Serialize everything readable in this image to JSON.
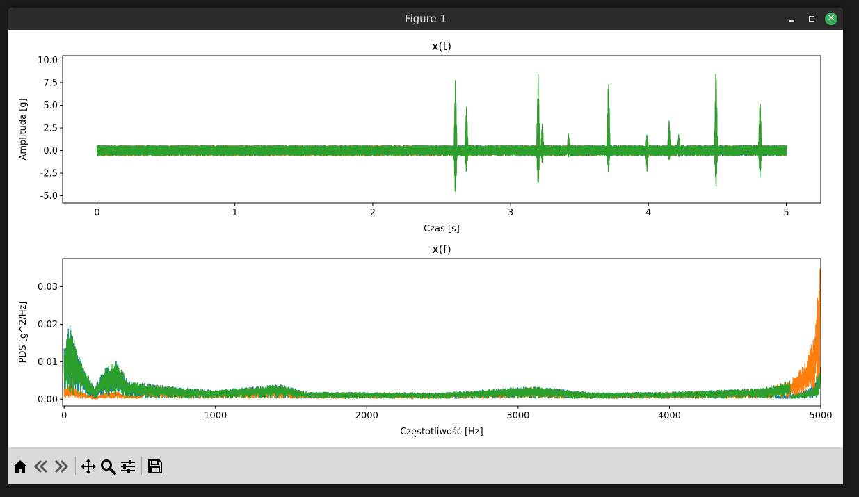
{
  "window": {
    "title": "Figure 1"
  },
  "toolbar": {
    "items": [
      {
        "name": "home-icon"
      },
      {
        "name": "back-icon"
      },
      {
        "name": "forward-icon"
      },
      {
        "name": "pan-icon"
      },
      {
        "name": "zoom-icon"
      },
      {
        "name": "configure-subplots-icon"
      },
      {
        "name": "save-icon"
      }
    ]
  },
  "colors": {
    "series1": "#1f77b4",
    "series2": "#ff7f0e",
    "series3": "#2ca02c"
  },
  "chart_data": [
    {
      "type": "line",
      "title": "x(t)",
      "xlabel": "Czas [s]",
      "ylabel": "Amplituda [g]",
      "xlim": [
        -0.25,
        5.25
      ],
      "ylim": [
        -5.8,
        10.5
      ],
      "xticks": [
        "0",
        "1",
        "2",
        "3",
        "4",
        "5"
      ],
      "yticks": [
        "10.0",
        "7.5",
        "5.0",
        "2.5",
        "0.0",
        "-2.5",
        "-5.0"
      ],
      "grid": false,
      "series_count": 3,
      "baseline_band": [
        -0.6,
        0.6
      ],
      "spikes": [
        {
          "t": 2.6,
          "max": 7.8,
          "min": -5.4
        },
        {
          "t": 2.68,
          "max": 5.2,
          "min": -2.6
        },
        {
          "t": 3.2,
          "max": 8.4,
          "min": -4.2
        },
        {
          "t": 3.23,
          "max": 3.2,
          "min": -1.5
        },
        {
          "t": 3.42,
          "max": 2.0,
          "min": -0.8
        },
        {
          "t": 3.71,
          "max": 8.4,
          "min": -2.5
        },
        {
          "t": 3.99,
          "max": 2.0,
          "min": -2.4
        },
        {
          "t": 4.15,
          "max": 3.3,
          "min": -1.2
        },
        {
          "t": 4.22,
          "max": 1.9,
          "min": -0.8
        },
        {
          "t": 4.49,
          "max": 9.7,
          "min": -4.1
        },
        {
          "t": 4.81,
          "max": 5.9,
          "min": -3.1
        }
      ]
    },
    {
      "type": "line",
      "title": "x(f)",
      "xlabel": "Częstotliwość [Hz]",
      "ylabel": "PDS [g^2/Hz]",
      "xlim": [
        -10,
        5000
      ],
      "ylim": [
        -0.0018,
        0.0375
      ],
      "xticks": [
        "0",
        "1000",
        "2000",
        "3000",
        "4000",
        "5000"
      ],
      "yticks": [
        "0.03",
        "0.02",
        "0.01",
        "0.00"
      ],
      "grid": false,
      "series_count": 3,
      "envelope": [
        {
          "f": 0,
          "v": 0.014
        },
        {
          "f": 20,
          "v": 0.019
        },
        {
          "f": 50,
          "v": 0.0205
        },
        {
          "f": 70,
          "v": 0.015
        },
        {
          "f": 120,
          "v": 0.01
        },
        {
          "f": 200,
          "v": 0.003
        },
        {
          "f": 260,
          "v": 0.008
        },
        {
          "f": 350,
          "v": 0.0105
        },
        {
          "f": 420,
          "v": 0.005
        },
        {
          "f": 600,
          "v": 0.004
        },
        {
          "f": 800,
          "v": 0.003
        },
        {
          "f": 1000,
          "v": 0.0025
        },
        {
          "f": 1430,
          "v": 0.004
        },
        {
          "f": 1600,
          "v": 0.002
        },
        {
          "f": 2500,
          "v": 0.0018
        },
        {
          "f": 3100,
          "v": 0.0035
        },
        {
          "f": 3500,
          "v": 0.0018
        },
        {
          "f": 4000,
          "v": 0.002
        },
        {
          "f": 4600,
          "v": 0.003
        },
        {
          "f": 4800,
          "v": 0.005
        },
        {
          "f": 4900,
          "v": 0.01
        },
        {
          "f": 4960,
          "v": 0.018
        },
        {
          "f": 4990,
          "v": 0.036
        }
      ]
    }
  ]
}
